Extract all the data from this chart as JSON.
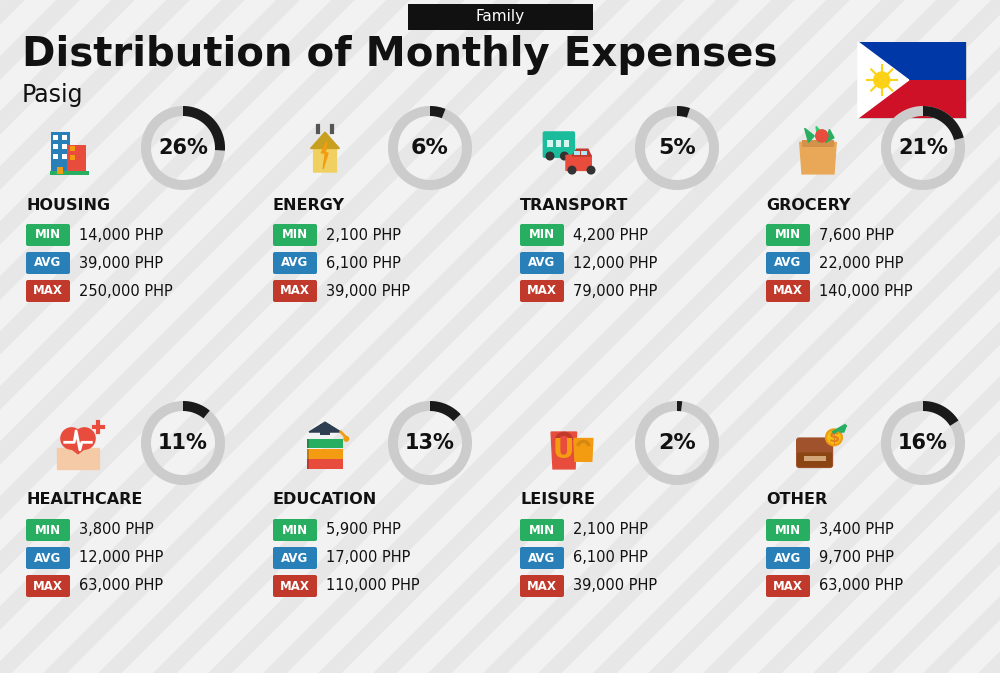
{
  "title": "Distribution of Monthly Expenses",
  "subtitle": "Family",
  "city": "Pasig",
  "bg_color": "#f2f2f2",
  "categories": [
    {
      "name": "HOUSING",
      "pct": 26,
      "min": "14,000 PHP",
      "avg": "39,000 PHP",
      "max": "250,000 PHP"
    },
    {
      "name": "ENERGY",
      "pct": 6,
      "min": "2,100 PHP",
      "avg": "6,100 PHP",
      "max": "39,000 PHP"
    },
    {
      "name": "TRANSPORT",
      "pct": 5,
      "min": "4,200 PHP",
      "avg": "12,000 PHP",
      "max": "79,000 PHP"
    },
    {
      "name": "GROCERY",
      "pct": 21,
      "min": "7,600 PHP",
      "avg": "22,000 PHP",
      "max": "140,000 PHP"
    },
    {
      "name": "HEALTHCARE",
      "pct": 11,
      "min": "3,800 PHP",
      "avg": "12,000 PHP",
      "max": "63,000 PHP"
    },
    {
      "name": "EDUCATION",
      "pct": 13,
      "min": "5,900 PHP",
      "avg": "17,000 PHP",
      "max": "110,000 PHP"
    },
    {
      "name": "LEISURE",
      "pct": 2,
      "min": "2,100 PHP",
      "avg": "6,100 PHP",
      "max": "39,000 PHP"
    },
    {
      "name": "OTHER",
      "pct": 16,
      "min": "3,400 PHP",
      "avg": "9,700 PHP",
      "max": "63,000 PHP"
    }
  ],
  "min_color": "#27ae60",
  "avg_color": "#2980b9",
  "max_color": "#c0392b",
  "arc_dark": "#1a1a1a",
  "arc_light": "#cccccc",
  "text_dark": "#111111"
}
